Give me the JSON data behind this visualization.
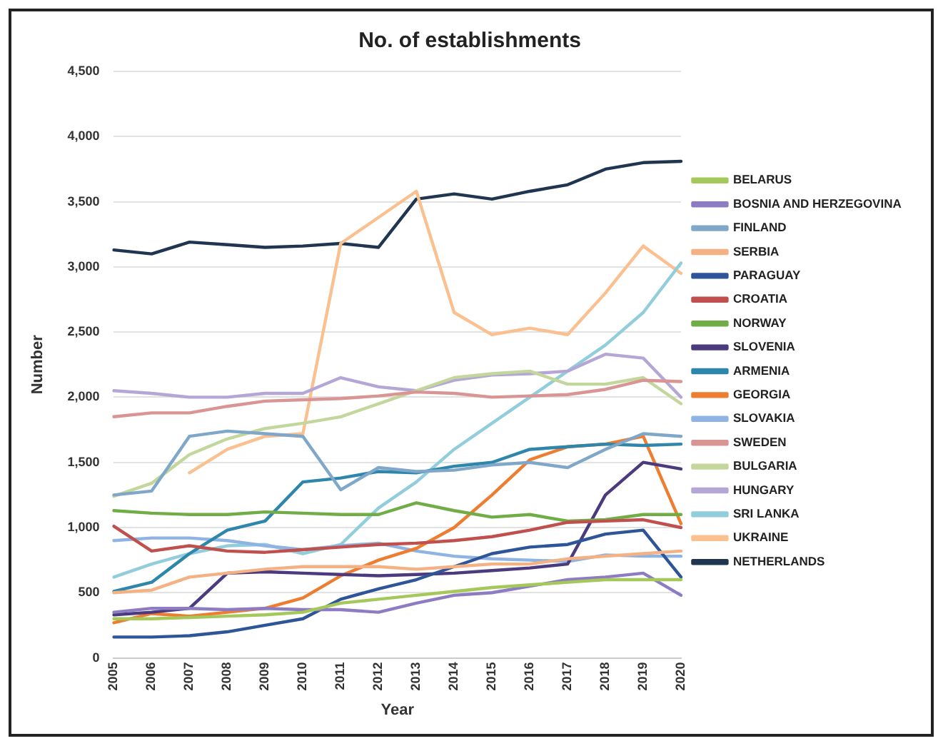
{
  "chart_data": {
    "type": "line",
    "title": "No. of establishments",
    "xlabel": "Year",
    "ylabel": "Number",
    "categories": [
      "2005",
      "2006",
      "2007",
      "2008",
      "2009",
      "2010",
      "2011",
      "2012",
      "2013",
      "2014",
      "2015",
      "2016",
      "2017",
      "2018",
      "2019",
      "2020"
    ],
    "ylim": [
      0,
      4500
    ],
    "yticks": [
      {
        "value": 0,
        "label": "0"
      },
      {
        "value": 500,
        "label": "500"
      },
      {
        "value": 1000,
        "label": "1,000"
      },
      {
        "value": 1500,
        "label": "1,500"
      },
      {
        "value": 2000,
        "label": "2,000"
      },
      {
        "value": 2500,
        "label": "2,500"
      },
      {
        "value": 3000,
        "label": "3,000"
      },
      {
        "value": 3500,
        "label": "3,500"
      },
      {
        "value": 4000,
        "label": "4,000"
      },
      {
        "value": 4500,
        "label": "4,500"
      }
    ],
    "grid": "y",
    "legend": "right",
    "marker": "none",
    "line_style": "solid",
    "series": [
      {
        "name": "BELARUS",
        "color": "#a5c85a",
        "values": [
          300,
          300,
          310,
          320,
          330,
          350,
          420,
          450,
          480,
          510,
          540,
          560,
          580,
          600,
          600,
          600
        ]
      },
      {
        "name": "BOSNIA AND HERZEGOVINA",
        "color": "#8e7cc3",
        "values": [
          350,
          380,
          380,
          370,
          380,
          370,
          370,
          350,
          420,
          480,
          500,
          550,
          600,
          620,
          650,
          480
        ]
      },
      {
        "name": "FINLAND",
        "color": "#7fa7c9",
        "values": [
          1250,
          1280,
          1700,
          1740,
          1720,
          1700,
          1290,
          1460,
          1430,
          1440,
          1480,
          1500,
          1460,
          1600,
          1720,
          1700
        ]
      },
      {
        "name": "SERBIA",
        "color": "#f4b183",
        "values": [
          500,
          520,
          620,
          650,
          680,
          700,
          700,
          700,
          680,
          700,
          720,
          720,
          760,
          780,
          800,
          820
        ]
      },
      {
        "name": "PARAGUAY",
        "color": "#2e5597",
        "values": [
          160,
          160,
          170,
          200,
          250,
          300,
          450,
          530,
          600,
          700,
          800,
          850,
          870,
          950,
          980,
          620
        ]
      },
      {
        "name": "CROATIA",
        "color": "#c0504d",
        "values": [
          1010,
          820,
          860,
          820,
          810,
          830,
          850,
          870,
          880,
          900,
          930,
          980,
          1040,
          1050,
          1060,
          1000
        ]
      },
      {
        "name": "NORWAY",
        "color": "#70ad47",
        "values": [
          1130,
          1110,
          1100,
          1100,
          1120,
          1110,
          1100,
          1100,
          1190,
          1130,
          1080,
          1100,
          1050,
          1060,
          1100,
          1100
        ]
      },
      {
        "name": "SLOVENIA",
        "color": "#4b3a7d",
        "values": [
          330,
          350,
          380,
          650,
          660,
          650,
          640,
          630,
          640,
          650,
          670,
          690,
          720,
          1250,
          1500,
          1450
        ]
      },
      {
        "name": "ARMENIA",
        "color": "#2e86ab",
        "values": [
          510,
          580,
          800,
          980,
          1050,
          1350,
          1380,
          1430,
          1420,
          1470,
          1500,
          1600,
          1620,
          1640,
          1630,
          1640
        ]
      },
      {
        "name": "GEORGIA",
        "color": "#ed7d31",
        "values": [
          270,
          340,
          320,
          350,
          380,
          460,
          630,
          750,
          840,
          1000,
          1250,
          1520,
          1620,
          1640,
          1700,
          1030
        ]
      },
      {
        "name": "SLOVAKIA",
        "color": "#8fb4e3",
        "values": [
          900,
          920,
          920,
          900,
          860,
          830,
          860,
          880,
          820,
          780,
          760,
          750,
          740,
          790,
          780,
          780
        ]
      },
      {
        "name": "SWEDEN",
        "color": "#d99594",
        "values": [
          1850,
          1880,
          1880,
          1930,
          1970,
          1980,
          1990,
          2010,
          2040,
          2030,
          2000,
          2010,
          2020,
          2060,
          2130,
          2120
        ]
      },
      {
        "name": "BULGARIA",
        "color": "#c3d69b",
        "values": [
          1240,
          1340,
          1560,
          1680,
          1760,
          1800,
          1850,
          1950,
          2050,
          2150,
          2180,
          2200,
          2100,
          2100,
          2150,
          1950
        ]
      },
      {
        "name": "HUNGARY",
        "color": "#b4a7d6",
        "values": [
          2050,
          2030,
          2000,
          2000,
          2030,
          2030,
          2150,
          2080,
          2050,
          2130,
          2170,
          2180,
          2200,
          2330,
          2300,
          2000
        ]
      },
      {
        "name": "SRI LANKA",
        "color": "#92cddc",
        "values": [
          620,
          720,
          800,
          860,
          870,
          800,
          870,
          1150,
          1350,
          1600,
          1800,
          2000,
          2200,
          2400,
          2650,
          3030
        ]
      },
      {
        "name": "UKRAINE",
        "color": "#fac090",
        "values": [
          null,
          null,
          1420,
          1600,
          1700,
          1720,
          3180,
          3380,
          3580,
          2650,
          2480,
          2530,
          2480,
          2800,
          3160,
          2950
        ]
      },
      {
        "name": "NETHERLANDS",
        "color": "#1f3550",
        "values": [
          3130,
          3100,
          3190,
          3170,
          3150,
          3160,
          3180,
          3150,
          3520,
          3560,
          3520,
          3580,
          3630,
          3750,
          3800,
          3810
        ]
      }
    ]
  }
}
